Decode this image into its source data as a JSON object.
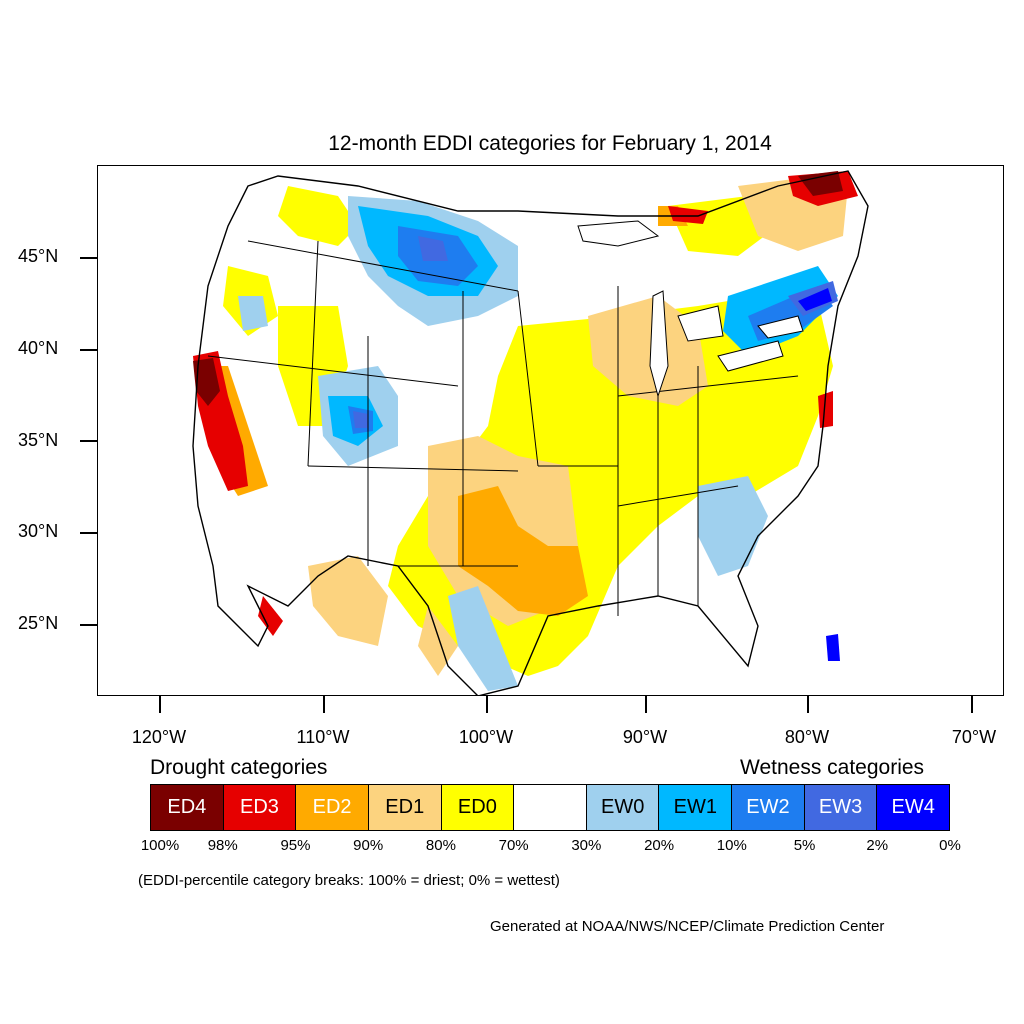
{
  "title": "12-month EDDI categories for February 1, 2014",
  "map": {
    "region": "Contiguous United States",
    "y_axis_labels": [
      "45°N",
      "40°N",
      "35°N",
      "30°N",
      "25°N"
    ],
    "x_axis_labels": [
      "120°W",
      "110°W",
      "100°W",
      "90°W",
      "80°W",
      "70°W"
    ],
    "colors": {
      "ED4": "#7a0000",
      "ED3": "#e60000",
      "ED2": "#ffaa00",
      "ED1": "#fcd37f",
      "ED0": "#ffff00",
      "NONE": "#ffffff",
      "EW0": "#9fd0ee",
      "EW1": "#00b8ff",
      "EW2": "#1e7df0",
      "EW3": "#4169e1",
      "EW4": "#0000ff"
    }
  },
  "legend": {
    "drought_heading": "Drought categories",
    "wetness_heading": "Wetness categories",
    "categories": [
      {
        "label": "ED4",
        "color": "#7a0000",
        "text_color": "#ffffff"
      },
      {
        "label": "ED3",
        "color": "#e60000",
        "text_color": "#ffffff"
      },
      {
        "label": "ED2",
        "color": "#ffaa00",
        "text_color": "#ffffff"
      },
      {
        "label": "ED1",
        "color": "#fcd37f",
        "text_color": "#000000"
      },
      {
        "label": "ED0",
        "color": "#ffff00",
        "text_color": "#000000"
      },
      {
        "label": "",
        "color": "#ffffff",
        "text_color": "#000000"
      },
      {
        "label": "EW0",
        "color": "#9fd0ee",
        "text_color": "#000000"
      },
      {
        "label": "EW1",
        "color": "#00b8ff",
        "text_color": "#000000"
      },
      {
        "label": "EW2",
        "color": "#1e7df0",
        "text_color": "#ffffff"
      },
      {
        "label": "EW3",
        "color": "#4169e1",
        "text_color": "#ffffff"
      },
      {
        "label": "EW4",
        "color": "#0000ff",
        "text_color": "#ffffff"
      }
    ],
    "breaks": [
      "100%",
      "98%",
      "95%",
      "90%",
      "80%",
      "70%",
      "30%",
      "20%",
      "10%",
      "5%",
      "2%",
      "0%"
    ]
  },
  "note": "(EDDI-percentile category breaks: 100% = driest; 0% = wettest)",
  "credit": "Generated at NOAA/NWS/NCEP/Climate Prediction Center"
}
